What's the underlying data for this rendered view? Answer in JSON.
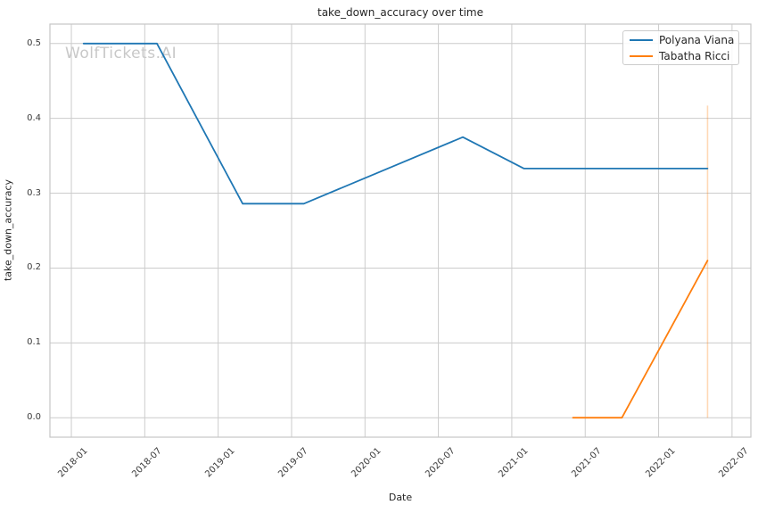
{
  "chart_data": {
    "type": "line",
    "title": "take_down_accuracy over time",
    "xlabel": "Date",
    "ylabel": "take_down_accuracy",
    "watermark": "WolfTickets.AI",
    "grid": true,
    "legend_position": "upper right",
    "background_color": "#ffffff",
    "grid_color": "#cccccc",
    "spine_color": "#c6c6c6",
    "x_ticks": [
      "2018-01",
      "2018-07",
      "2019-01",
      "2019-07",
      "2020-01",
      "2020-07",
      "2021-01",
      "2021-07",
      "2022-01",
      "2022-07"
    ],
    "y_ticks": [
      0.0,
      0.1,
      0.2,
      0.3,
      0.4,
      0.5
    ],
    "ylim": [
      -0.026,
      0.526
    ],
    "xlim_months_from_2018_01": [
      -1.75,
      55.54
    ],
    "series": [
      {
        "name": "Polyana Viana",
        "color": "#1f77b4",
        "points": [
          {
            "date": "2018-02",
            "value": 0.5
          },
          {
            "date": "2018-08",
            "value": 0.5
          },
          {
            "date": "2019-03",
            "value": 0.286
          },
          {
            "date": "2019-08",
            "value": 0.286
          },
          {
            "date": "2020-09",
            "value": 0.375
          },
          {
            "date": "2021-02",
            "value": 0.333
          },
          {
            "date": "2022-05",
            "value": 0.333
          }
        ]
      },
      {
        "name": "Tabatha Ricci",
        "color": "#ff7f0e",
        "points": [
          {
            "date": "2021-06",
            "value": 0.0
          },
          {
            "date": "2021-10",
            "value": 0.0
          },
          {
            "date": "2022-05",
            "value": 0.21
          }
        ]
      }
    ],
    "annotations": {
      "vertical_marker": {
        "date": "2022-05",
        "from": 0.0,
        "to": 0.417,
        "color": "#ff7f0e",
        "opacity": 0.3
      }
    }
  }
}
